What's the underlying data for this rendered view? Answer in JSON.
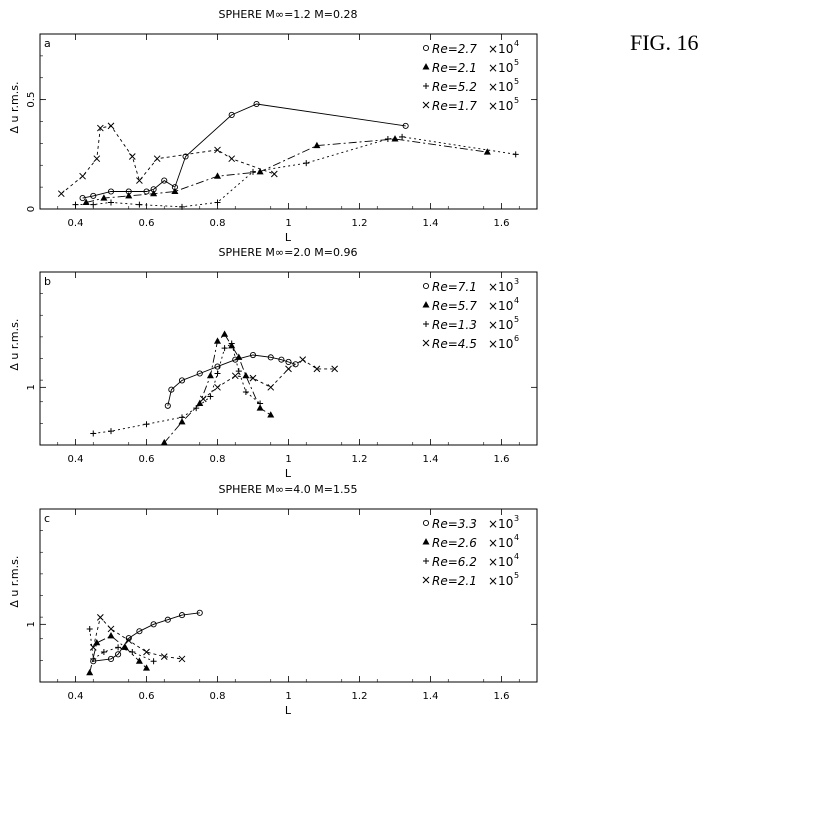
{
  "figure_label": "FIG. 16",
  "chart_data": [
    {
      "type": "line",
      "panel_letter": "a",
      "title": "SPHERE  M∞=1.2  M=0.28",
      "xlabel": "L",
      "ylabel": "Δ u  r.m.s.",
      "xlim": [
        0.3,
        1.7
      ],
      "ylim": [
        0,
        0.8
      ],
      "x_ticks": [
        0.4,
        0.6,
        0.8,
        1,
        1.2,
        1.4,
        1.6
      ],
      "y_ticks": [
        0,
        0.5
      ],
      "legend_position": "top-right",
      "series": [
        {
          "name": "Re=2.7 ×10⁴",
          "label": "Re=2.7",
          "exp_base": "×10",
          "exp": "4",
          "marker": "circle",
          "dash": "",
          "x": [
            0.42,
            0.45,
            0.5,
            0.55,
            0.6,
            0.62,
            0.65,
            0.68,
            0.71,
            0.84,
            0.91,
            1.33
          ],
          "y": [
            0.05,
            0.06,
            0.08,
            0.08,
            0.08,
            0.09,
            0.13,
            0.1,
            0.24,
            0.43,
            0.48,
            0.38
          ]
        },
        {
          "name": "Re=2.1 ×10⁵",
          "label": "Re=2.1",
          "exp_base": "×10",
          "exp": "5",
          "marker": "triangle",
          "dash": "8,3,2,3",
          "x": [
            0.43,
            0.48,
            0.55,
            0.62,
            0.68,
            0.8,
            0.92,
            1.08,
            1.3,
            1.56
          ],
          "y": [
            0.03,
            0.05,
            0.06,
            0.07,
            0.08,
            0.15,
            0.17,
            0.29,
            0.32,
            0.26
          ]
        },
        {
          "name": "Re=5.2 ×10⁵",
          "label": "Re=5.2",
          "exp_base": "×10",
          "exp": "5",
          "marker": "plus",
          "dash": "2,3",
          "x": [
            0.4,
            0.45,
            0.5,
            0.58,
            0.7,
            0.8,
            0.9,
            1.05,
            1.28,
            1.32,
            1.64
          ],
          "y": [
            0.02,
            0.02,
            0.03,
            0.02,
            0.01,
            0.03,
            0.17,
            0.21,
            0.32,
            0.33,
            0.25
          ]
        },
        {
          "name": "Re=1.7 ×10⁵",
          "label": "Re=1.7",
          "exp_base": "×10",
          "exp": "5",
          "marker": "x",
          "dash": "3,3",
          "x": [
            0.36,
            0.42,
            0.46,
            0.47,
            0.5,
            0.56,
            0.58,
            0.63,
            0.8,
            0.84,
            0.96
          ],
          "y": [
            0.07,
            0.15,
            0.23,
            0.37,
            0.38,
            0.24,
            0.13,
            0.23,
            0.27,
            0.23,
            0.16
          ]
        }
      ]
    },
    {
      "type": "line",
      "panel_letter": "b",
      "title": "SPHERE  M∞=2.0  M=0.96",
      "xlabel": "L",
      "ylabel": "Δ u  r.m.s.",
      "xlim": [
        0.3,
        1.7
      ],
      "ylim": [
        0.75,
        1.5
      ],
      "x_ticks": [
        0.4,
        0.6,
        0.8,
        1,
        1.2,
        1.4,
        1.6
      ],
      "y_ticks": [
        1
      ],
      "legend_position": "top-right",
      "series": [
        {
          "name": "Re=7.1 ×10³",
          "label": "Re=7.1",
          "exp_base": "×10",
          "exp": "3",
          "marker": "circle",
          "dash": "",
          "x": [
            0.66,
            0.67,
            0.7,
            0.75,
            0.8,
            0.85,
            0.9,
            0.95,
            0.98,
            1.0,
            1.02
          ],
          "y": [
            0.92,
            0.99,
            1.03,
            1.06,
            1.09,
            1.12,
            1.14,
            1.13,
            1.12,
            1.11,
            1.1
          ]
        },
        {
          "name": "Re=5.7 ×10⁴",
          "label": "Re=5.7",
          "exp_base": "×10",
          "exp": "4",
          "marker": "triangle",
          "dash": "8,3,2,3",
          "x": [
            0.65,
            0.7,
            0.75,
            0.78,
            0.8,
            0.82,
            0.84,
            0.86,
            0.88,
            0.92,
            0.95
          ],
          "y": [
            0.76,
            0.85,
            0.93,
            1.05,
            1.2,
            1.23,
            1.18,
            1.13,
            1.05,
            0.91,
            0.88
          ]
        },
        {
          "name": "Re=1.3 ×10⁵",
          "label": "Re=1.3",
          "exp_base": "×10",
          "exp": "5",
          "marker": "plus",
          "dash": "2,3",
          "x": [
            0.45,
            0.5,
            0.6,
            0.7,
            0.74,
            0.78,
            0.8,
            0.82,
            0.84,
            0.86,
            0.88,
            0.92
          ],
          "y": [
            0.8,
            0.81,
            0.84,
            0.87,
            0.91,
            0.96,
            1.06,
            1.17,
            1.19,
            1.07,
            0.98,
            0.93
          ]
        },
        {
          "name": "Re=4.5 ×10⁶",
          "label": "Re=4.5",
          "exp_base": "×10",
          "exp": "6",
          "marker": "x",
          "dash": "3,3",
          "x": [
            0.76,
            0.8,
            0.85,
            0.9,
            0.95,
            1.0,
            1.04,
            1.08,
            1.13
          ],
          "y": [
            0.95,
            1.0,
            1.05,
            1.04,
            1.0,
            1.08,
            1.12,
            1.08,
            1.08
          ]
        }
      ]
    },
    {
      "type": "line",
      "panel_letter": "c",
      "title": "SPHERE  M∞=4.0  M=1.55",
      "xlabel": "L",
      "ylabel": "Δ u  r.m.s.",
      "xlim": [
        0.3,
        1.7
      ],
      "ylim": [
        0.75,
        1.5
      ],
      "x_ticks": [
        0.4,
        0.6,
        0.8,
        1,
        1.2,
        1.4,
        1.6
      ],
      "y_ticks": [
        1
      ],
      "legend_position": "top-right",
      "series": [
        {
          "name": "Re=3.3 ×10³",
          "label": "Re=3.3",
          "exp_base": "×10",
          "exp": "3",
          "marker": "circle",
          "dash": "",
          "x": [
            0.45,
            0.5,
            0.52,
            0.55,
            0.58,
            0.62,
            0.66,
            0.7,
            0.75
          ],
          "y": [
            0.84,
            0.85,
            0.87,
            0.94,
            0.97,
            1.0,
            1.02,
            1.04,
            1.05
          ]
        },
        {
          "name": "Re=2.6 ×10⁴",
          "label": "Re=2.6",
          "exp_base": "×10",
          "exp": "4",
          "marker": "triangle",
          "dash": "8,3,2,3",
          "x": [
            0.44,
            0.46,
            0.5,
            0.54,
            0.58,
            0.6
          ],
          "y": [
            0.79,
            0.92,
            0.95,
            0.9,
            0.84,
            0.81
          ]
        },
        {
          "name": "Re=6.2 ×10⁴",
          "label": "Re=6.2",
          "exp_base": "×10",
          "exp": "4",
          "marker": "plus",
          "dash": "2,3",
          "x": [
            0.44,
            0.45,
            0.48,
            0.52,
            0.56,
            0.62
          ],
          "y": [
            0.98,
            0.85,
            0.88,
            0.9,
            0.88,
            0.84
          ]
        },
        {
          "name": "Re=2.1 ×10⁵",
          "label": "Re=2.1",
          "exp_base": "×10",
          "exp": "5",
          "marker": "x",
          "dash": "3,3",
          "x": [
            0.45,
            0.47,
            0.5,
            0.55,
            0.6,
            0.65,
            0.7
          ],
          "y": [
            0.9,
            1.03,
            0.98,
            0.93,
            0.88,
            0.86,
            0.85
          ]
        }
      ]
    }
  ]
}
